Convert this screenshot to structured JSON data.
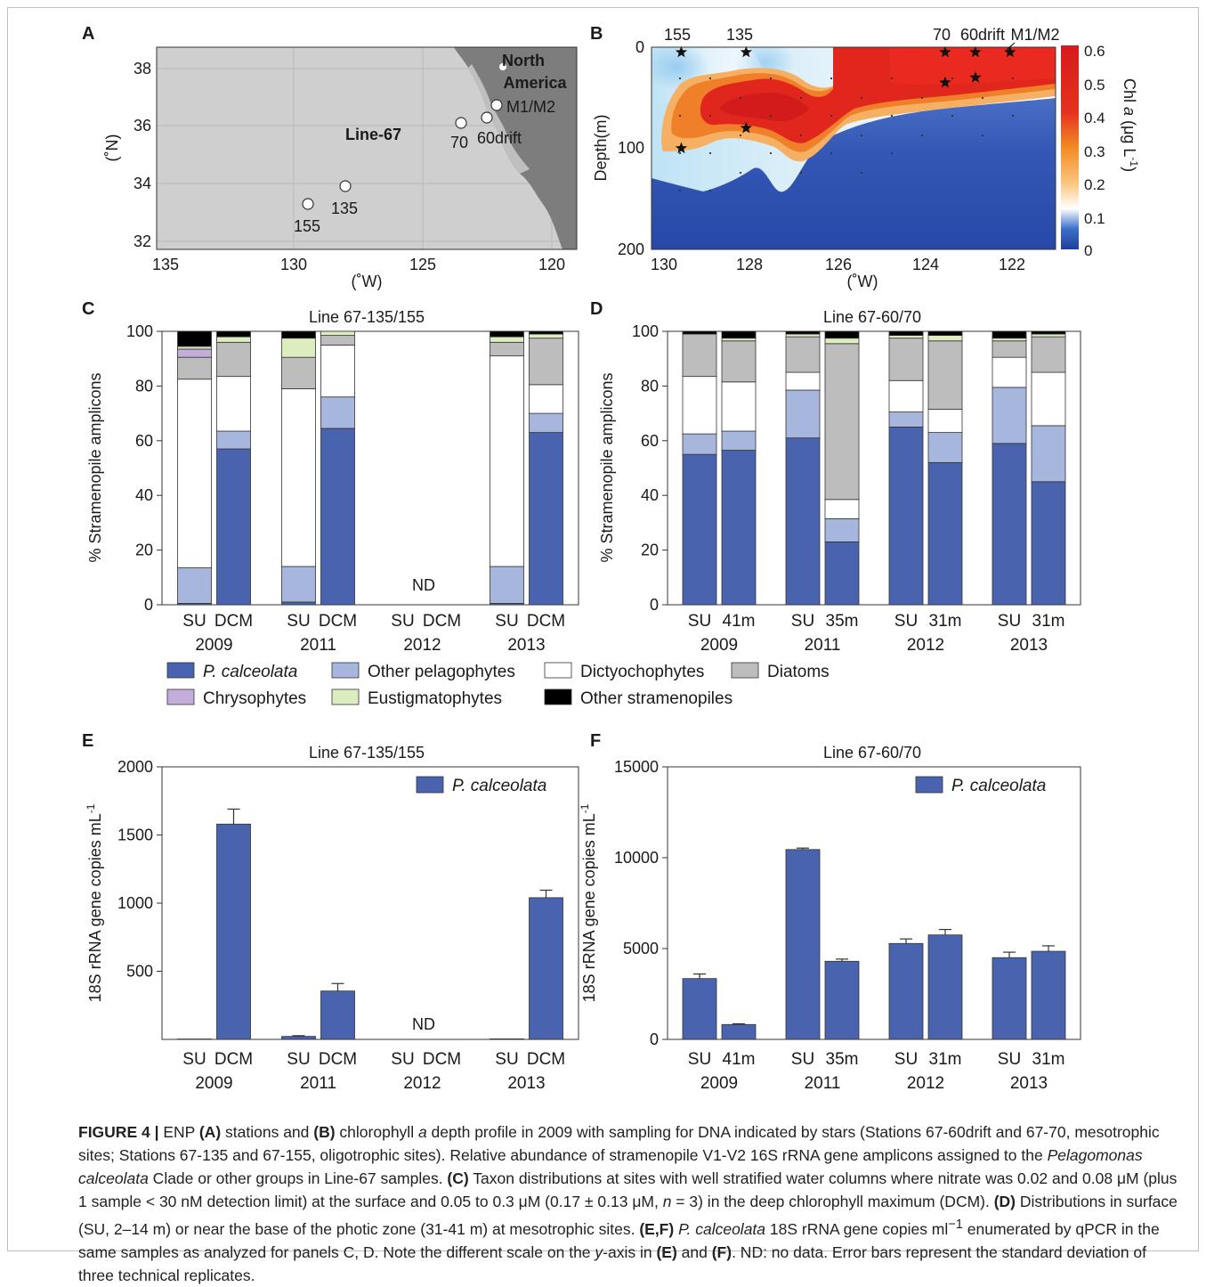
{
  "colors": {
    "P_calceolata": "#4a63ae",
    "Other_pelagophytes": "#a7b6dd",
    "Dictyochophytes": "#ffffff",
    "Diatoms": "#bdbdbd",
    "Chrysophytes": "#c3addb",
    "Eustigmatophytes": "#dcedc0",
    "Other_stramenopiles": "#000000",
    "land": "#7d7d7d",
    "ocean": "#cfcfcf"
  },
  "panelA": {
    "letter": "A",
    "y_ticks": [
      "38",
      "36",
      "34",
      "32"
    ],
    "x_ticks": [
      "135",
      "130",
      "125",
      "120"
    ],
    "y_label": "(˚N)",
    "x_label": "(˚W)",
    "region_label_1": "North",
    "region_label_2": "America",
    "line_label": "Line-67",
    "stations": [
      "155",
      "135",
      "70",
      "60drift",
      "M1/M2"
    ]
  },
  "panelB": {
    "letter": "B",
    "top_labels": [
      "155",
      "135",
      "70",
      "60drift",
      "M1/M2"
    ],
    "y_ticks": [
      "0",
      "100",
      "200"
    ],
    "x_ticks": [
      "130",
      "128",
      "126",
      "124",
      "122"
    ],
    "y_label": "Depth(m)",
    "x_label": "(˚W)",
    "colorbar_ticks": [
      "0.6",
      "0.5",
      "0.4",
      "0.3",
      "0.2",
      "0.1",
      "0"
    ],
    "colorbar_label_1": "Chl",
    "colorbar_label_2": "a",
    "colorbar_label_3": "(μg L",
    "colorbar_label_sup": "-1",
    "colorbar_label_4": ")",
    "sample_markers": [
      {
        "lon": 129.6,
        "depth": 5
      },
      {
        "lon": 129.6,
        "depth": 100
      },
      {
        "lon": 128.1,
        "depth": 5
      },
      {
        "lon": 128.1,
        "depth": 80
      },
      {
        "lon": 123.5,
        "depth": 5
      },
      {
        "lon": 123.5,
        "depth": 35
      },
      {
        "lon": 122.8,
        "depth": 5
      },
      {
        "lon": 122.8,
        "depth": 30
      },
      {
        "lon": 122.0,
        "depth": 5
      }
    ]
  },
  "chart_data": [
    {
      "panel": "C",
      "type": "bar",
      "stacked": true,
      "title": "Line 67-135/155",
      "ylabel": "% Stramenopile amplicons",
      "ylim": [
        0,
        100
      ],
      "y_ticks": [
        "0",
        "20",
        "40",
        "60",
        "80",
        "100"
      ],
      "groups": [
        {
          "year": "2009",
          "labels": [
            "SU",
            "DCM"
          ]
        },
        {
          "year": "2011",
          "labels": [
            "SU",
            "DCM"
          ]
        },
        {
          "year": "2012",
          "labels": [
            "SU",
            "DCM"
          ]
        },
        {
          "year": "2013",
          "labels": [
            "SU",
            "DCM"
          ]
        }
      ],
      "nd_label": "ND",
      "series_order": [
        "P. calceolata",
        "Other pelagophytes",
        "Dictyochophytes",
        "Diatoms",
        "Eustigmatophytes",
        "Chrysophytes",
        "Other stramenopiles"
      ],
      "bars": [
        {
          "group": 0,
          "pos": 0,
          "values": [
            0.5,
            13,
            69,
            8,
            3,
            1,
            5.5
          ]
        },
        {
          "group": 0,
          "pos": 1,
          "values": [
            57,
            6.5,
            20,
            12.5,
            0,
            2,
            2
          ]
        },
        {
          "group": 1,
          "pos": 0,
          "values": [
            1,
            13,
            65,
            11.5,
            0,
            7,
            2.5
          ]
        },
        {
          "group": 1,
          "pos": 1,
          "values": [
            64.5,
            11.5,
            19,
            3.5,
            0,
            1.5,
            0
          ]
        },
        {
          "group": 3,
          "pos": 0,
          "values": [
            0.5,
            13.5,
            77,
            5,
            0,
            2,
            2
          ]
        },
        {
          "group": 3,
          "pos": 1,
          "values": [
            63,
            7,
            10.5,
            17,
            0,
            1.5,
            1
          ]
        }
      ]
    },
    {
      "panel": "D",
      "type": "bar",
      "stacked": true,
      "title": "Line 67-60/70",
      "ylabel": "% Stramenopile amplicons",
      "ylim": [
        0,
        100
      ],
      "y_ticks": [
        "0",
        "20",
        "40",
        "60",
        "80",
        "100"
      ],
      "groups": [
        {
          "year": "2009",
          "labels": [
            "SU",
            "41m"
          ]
        },
        {
          "year": "2011",
          "labels": [
            "SU",
            "35m"
          ]
        },
        {
          "year": "2012",
          "labels": [
            "SU",
            "31m"
          ]
        },
        {
          "year": "2013",
          "labels": [
            "SU",
            "31m"
          ]
        }
      ],
      "series_order": [
        "P. calceolata",
        "Other pelagophytes",
        "Dictyochophytes",
        "Diatoms",
        "Eustigmatophytes",
        "Chrysophytes",
        "Other stramenopiles"
      ],
      "bars": [
        {
          "group": 0,
          "pos": 0,
          "values": [
            55,
            7.5,
            21,
            15.5,
            0,
            0,
            1
          ]
        },
        {
          "group": 0,
          "pos": 1,
          "values": [
            56.5,
            7,
            18,
            15,
            0,
            1,
            2.5
          ]
        },
        {
          "group": 1,
          "pos": 0,
          "values": [
            61,
            17.5,
            6.5,
            13,
            0,
            1,
            1
          ]
        },
        {
          "group": 1,
          "pos": 1,
          "values": [
            23,
            8.5,
            7,
            57,
            0,
            2,
            2.5
          ]
        },
        {
          "group": 2,
          "pos": 0,
          "values": [
            65,
            5.5,
            11.5,
            15.5,
            0,
            1,
            1.5
          ]
        },
        {
          "group": 2,
          "pos": 1,
          "values": [
            52,
            11,
            8.5,
            25,
            0,
            2,
            1.5
          ]
        },
        {
          "group": 3,
          "pos": 0,
          "values": [
            59,
            20.5,
            11,
            6,
            0,
            1,
            2.5
          ]
        },
        {
          "group": 3,
          "pos": 1,
          "values": [
            45,
            20.5,
            19.5,
            13,
            0,
            1,
            1
          ]
        }
      ]
    },
    {
      "panel": "E",
      "type": "bar",
      "title": "Line 67-135/155",
      "ylabel": "18S rRNA gene copies mL",
      "ylabel_sup": "-1",
      "ylim": [
        0,
        2000
      ],
      "y_ticks": [
        "500",
        "1000",
        "1500",
        "2000"
      ],
      "y_tick_values": [
        500,
        1000,
        1500,
        2000
      ],
      "legend": "P. calceolata",
      "nd_label": "ND",
      "groups": [
        {
          "year": "2009",
          "labels": [
            "SU",
            "DCM"
          ]
        },
        {
          "year": "2011",
          "labels": [
            "SU",
            "DCM"
          ]
        },
        {
          "year": "2012",
          "labels": [
            "SU",
            "DCM"
          ]
        },
        {
          "year": "2013",
          "labels": [
            "SU",
            "DCM"
          ]
        }
      ],
      "bars": [
        {
          "group": 0,
          "pos": 0,
          "value": 3,
          "err": 0
        },
        {
          "group": 0,
          "pos": 1,
          "value": 1580,
          "err": 110
        },
        {
          "group": 1,
          "pos": 0,
          "value": 22,
          "err": 5
        },
        {
          "group": 1,
          "pos": 1,
          "value": 355,
          "err": 55
        },
        {
          "group": 3,
          "pos": 0,
          "value": 4,
          "err": 0
        },
        {
          "group": 3,
          "pos": 1,
          "value": 1040,
          "err": 55
        }
      ]
    },
    {
      "panel": "F",
      "type": "bar",
      "title": "Line 67-60/70",
      "ylabel": "18S rRNA gene copies mL",
      "ylabel_sup": "-1",
      "ylim": [
        0,
        15000
      ],
      "y_ticks": [
        "0",
        "5000",
        "10000",
        "15000"
      ],
      "y_tick_values": [
        0,
        5000,
        10000,
        15000
      ],
      "legend": "P. calceolata",
      "groups": [
        {
          "year": "2009",
          "labels": [
            "SU",
            "41m"
          ]
        },
        {
          "year": "2011",
          "labels": [
            "SU",
            "35m"
          ]
        },
        {
          "year": "2012",
          "labels": [
            "SU",
            "31m"
          ]
        },
        {
          "year": "2013",
          "labels": [
            "SU",
            "31m"
          ]
        }
      ],
      "bars": [
        {
          "group": 0,
          "pos": 0,
          "value": 3350,
          "err": 250
        },
        {
          "group": 0,
          "pos": 1,
          "value": 820,
          "err": 40
        },
        {
          "group": 1,
          "pos": 0,
          "value": 10450,
          "err": 80
        },
        {
          "group": 1,
          "pos": 1,
          "value": 4300,
          "err": 120
        },
        {
          "group": 2,
          "pos": 0,
          "value": 5280,
          "err": 250
        },
        {
          "group": 2,
          "pos": 1,
          "value": 5750,
          "err": 300
        },
        {
          "group": 3,
          "pos": 0,
          "value": 4500,
          "err": 300
        },
        {
          "group": 3,
          "pos": 1,
          "value": 4850,
          "err": 300
        }
      ]
    }
  ],
  "legend": [
    {
      "name": "P. calceolata",
      "italic": true,
      "color": "#4a63ae"
    },
    {
      "name": "Other pelagophytes",
      "italic": false,
      "color": "#a7b6dd"
    },
    {
      "name": "Dictyochophytes",
      "italic": false,
      "color": "#ffffff"
    },
    {
      "name": "Diatoms",
      "italic": false,
      "color": "#bdbdbd"
    },
    {
      "name": "Chrysophytes",
      "italic": false,
      "color": "#c3addb"
    },
    {
      "name": "Eustigmatophytes",
      "italic": false,
      "color": "#dcedc0"
    },
    {
      "name": "Other stramenopiles",
      "italic": false,
      "color": "#000000"
    }
  ],
  "caption": {
    "fig_label": "FIGURE 4 |",
    "text_html": " ENP <b>(A)</b> stations and <b>(B)</b> chlorophyll <i>a</i> depth profile in 2009 with sampling for DNA indicated by stars (Stations 67-60drift and 67-70, mesotrophic sites; Stations 67-135 and 67-155, oligotrophic sites). Relative abundance of stramenopile V1-V2 16S rRNA gene amplicons assigned to the <i>Pelagomonas calceolata</i> Clade or other groups in Line-67 samples. <b>(C)</b> Taxon distributions at sites with well stratified water columns where nitrate was 0.02 and 0.08 μM (plus 1 sample &lt; 30 nM detection limit) at the surface and 0.05 to 0.3 μM (0.17 ± 0.13 μM, <i>n</i> = 3) in the deep chlorophyll maximum (DCM). <b>(D)</b> Distributions in surface (SU, 2–14 m) or near the base of the photic zone (31-41 m) at mesotrophic sites. <b>(E,F)</b> <i>P. calceolata</i> 18S rRNA gene copies ml<sup>−1</sup> enumerated by qPCR in the same samples as analyzed for panels C, D. Note the different scale on the <i>y</i>-axis in <b>(E)</b> and <b>(F)</b>. ND: no data. Error bars represent the standard deviation of three technical replicates."
  }
}
